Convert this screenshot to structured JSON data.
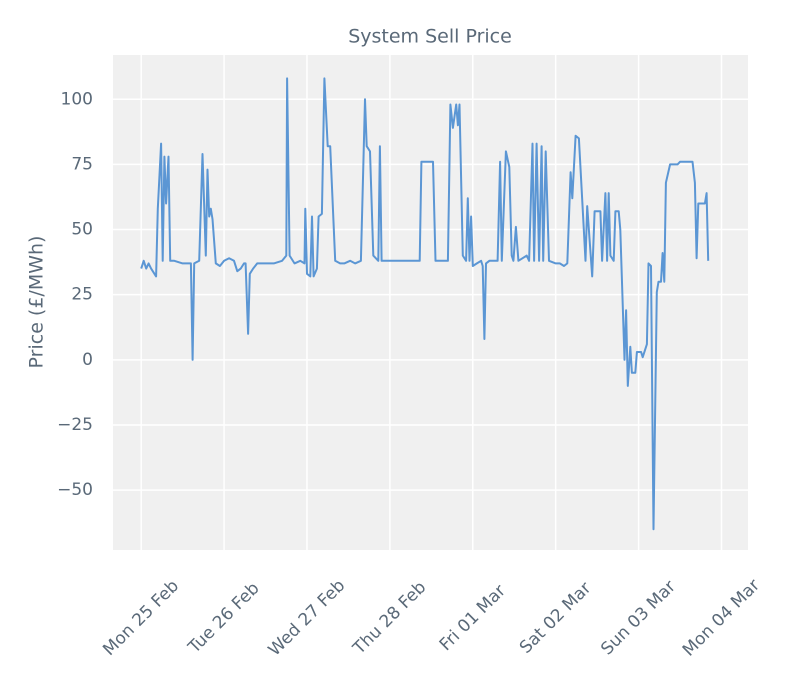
{
  "chart_data": {
    "type": "line",
    "title": "System Sell Price",
    "y_label": "Price (£/MWh)",
    "x": [
      0.0,
      0.03,
      0.06,
      0.09,
      0.12,
      0.18,
      0.2,
      0.24,
      0.26,
      0.28,
      0.3,
      0.33,
      0.35,
      0.4,
      0.5,
      0.6,
      0.62,
      0.64,
      0.7,
      0.74,
      0.78,
      0.8,
      0.82,
      0.84,
      0.86,
      0.9,
      0.95,
      1.0,
      1.06,
      1.12,
      1.16,
      1.2,
      1.24,
      1.26,
      1.29,
      1.31,
      1.35,
      1.4,
      1.5,
      1.6,
      1.7,
      1.75,
      1.76,
      1.79,
      1.85,
      1.92,
      1.97,
      1.98,
      2.0,
      2.04,
      2.06,
      2.08,
      2.12,
      2.14,
      2.18,
      2.21,
      2.25,
      2.28,
      2.34,
      2.4,
      2.45,
      2.52,
      2.58,
      2.65,
      2.7,
      2.72,
      2.76,
      2.8,
      2.86,
      2.88,
      2.9,
      3.0,
      3.1,
      3.2,
      3.3,
      3.36,
      3.38,
      3.52,
      3.55,
      3.7,
      3.73,
      3.76,
      3.8,
      3.82,
      3.84,
      3.88,
      3.92,
      3.94,
      3.96,
      3.98,
      4.0,
      4.05,
      4.1,
      4.12,
      4.14,
      4.16,
      4.2,
      4.3,
      4.33,
      4.35,
      4.4,
      4.44,
      4.47,
      4.49,
      4.52,
      4.55,
      4.65,
      4.68,
      4.72,
      4.74,
      4.77,
      4.8,
      4.83,
      4.85,
      4.88,
      4.92,
      5.0,
      5.05,
      5.1,
      5.14,
      5.18,
      5.2,
      5.24,
      5.28,
      5.36,
      5.38,
      5.44,
      5.47,
      5.54,
      5.56,
      5.6,
      5.62,
      5.64,
      5.66,
      5.7,
      5.72,
      5.76,
      5.78,
      5.83,
      5.85,
      5.87,
      5.9,
      5.92,
      5.96,
      5.98,
      6.03,
      6.05,
      6.1,
      6.12,
      6.15,
      6.18,
      6.22,
      6.24,
      6.27,
      6.29,
      6.31,
      6.33,
      6.38,
      6.47,
      6.5,
      6.65,
      6.68,
      6.7,
      6.72,
      6.8,
      6.82,
      6.84
    ],
    "series": [
      {
        "name": "System Sell Price",
        "color": "#5b96d4",
        "values": [
          35,
          38,
          35,
          37,
          35,
          32,
          58,
          83,
          38,
          78,
          60,
          78,
          38,
          38,
          37,
          37,
          0,
          37,
          38,
          79,
          40,
          73,
          55,
          58,
          54,
          37,
          36,
          38,
          39,
          38,
          34,
          35,
          37,
          37,
          10,
          33,
          35,
          37,
          37,
          37,
          38,
          40,
          108,
          40,
          37,
          38,
          37,
          58,
          33,
          32,
          55,
          32,
          35,
          55,
          56,
          108,
          82,
          82,
          38,
          37,
          37,
          38,
          37,
          38,
          100,
          82,
          80,
          40,
          38,
          82,
          38,
          38,
          38,
          38,
          38,
          38,
          76,
          76,
          38,
          38,
          98,
          89,
          98,
          90,
          98,
          40,
          38,
          62,
          38,
          55,
          36,
          37,
          38,
          36,
          8,
          37,
          38,
          38,
          76,
          38,
          80,
          74,
          40,
          38,
          51,
          38,
          40,
          38,
          83,
          38,
          83,
          38,
          82,
          38,
          80,
          38,
          37,
          37,
          36,
          37,
          72,
          62,
          86,
          85,
          38,
          59,
          32,
          57,
          57,
          38,
          64,
          38,
          64,
          40,
          38,
          57,
          57,
          50,
          0,
          19,
          -10,
          5,
          -5,
          -5,
          3,
          3,
          1,
          6,
          37,
          36,
          -65,
          26,
          30,
          30,
          41,
          30,
          68,
          75,
          75,
          76,
          76,
          68,
          39,
          60,
          60,
          64,
          38
        ]
      }
    ],
    "xlim": [
      -0.34,
      7.32
    ],
    "xticks": [
      {
        "value": 0,
        "label": "Mon 25 Feb"
      },
      {
        "value": 1,
        "label": "Tue 26 Feb"
      },
      {
        "value": 2,
        "label": "Wed 27 Feb"
      },
      {
        "value": 3,
        "label": "Thu 28 Feb"
      },
      {
        "value": 4,
        "label": "Fri 01 Mar"
      },
      {
        "value": 5,
        "label": "Sat 02 Mar"
      },
      {
        "value": 6,
        "label": "Sun 03 Mar"
      },
      {
        "value": 7,
        "label": "Mon 04 Mar"
      }
    ],
    "ylim": [
      -73,
      117
    ],
    "yticks": [
      {
        "value": -50,
        "label": "−50"
      },
      {
        "value": -25,
        "label": "−25"
      },
      0,
      25,
      50,
      75,
      100
    ],
    "grid": true
  }
}
